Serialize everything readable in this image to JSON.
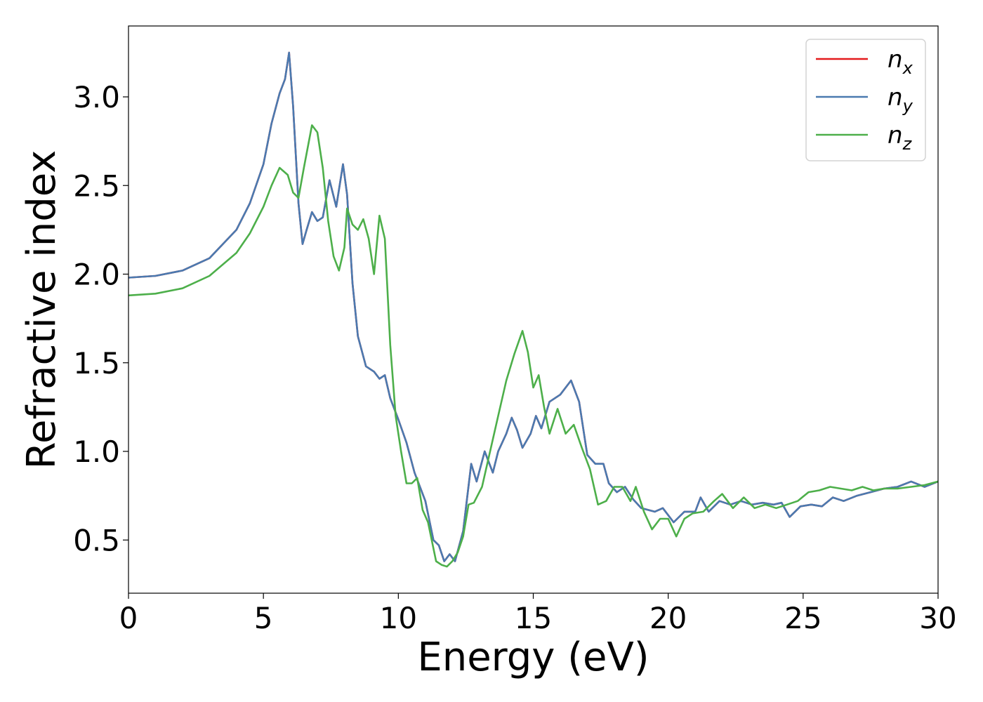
{
  "chart_data": {
    "type": "line",
    "xlabel": "Energy (eV)",
    "ylabel": "Refractive index",
    "xlim": [
      0,
      30
    ],
    "ylim": [
      0.2,
      3.4
    ],
    "xticks": [
      0,
      5,
      10,
      15,
      20,
      25,
      30
    ],
    "yticks": [
      0.5,
      1.0,
      1.5,
      2.0,
      2.5,
      3.0
    ],
    "xtick_labels": [
      "0",
      "5",
      "10",
      "15",
      "20",
      "25",
      "30"
    ],
    "ytick_labels": [
      "0.5",
      "1.0",
      "1.5",
      "2.0",
      "2.5",
      "3.0"
    ],
    "grid": false,
    "legend_position": "top-right",
    "series": [
      {
        "name_base": "n",
        "name_sub": "x",
        "color": "#e41a1c",
        "points": [
          [
            0,
            1.98
          ],
          [
            1,
            1.99
          ],
          [
            2,
            2.02
          ],
          [
            3,
            2.09
          ],
          [
            4,
            2.25
          ],
          [
            4.5,
            2.4
          ],
          [
            5,
            2.62
          ],
          [
            5.3,
            2.85
          ],
          [
            5.6,
            3.02
          ],
          [
            5.8,
            3.1
          ],
          [
            5.95,
            3.25
          ],
          [
            6.1,
            2.95
          ],
          [
            6.3,
            2.4
          ],
          [
            6.45,
            2.17
          ],
          [
            6.6,
            2.25
          ],
          [
            6.8,
            2.35
          ],
          [
            7.0,
            2.3
          ],
          [
            7.2,
            2.32
          ],
          [
            7.45,
            2.53
          ],
          [
            7.7,
            2.38
          ],
          [
            7.95,
            2.62
          ],
          [
            8.1,
            2.45
          ],
          [
            8.3,
            1.95
          ],
          [
            8.5,
            1.65
          ],
          [
            8.8,
            1.48
          ],
          [
            9.1,
            1.45
          ],
          [
            9.3,
            1.41
          ],
          [
            9.5,
            1.43
          ],
          [
            9.7,
            1.3
          ],
          [
            10.0,
            1.18
          ],
          [
            10.3,
            1.05
          ],
          [
            10.6,
            0.88
          ],
          [
            10.8,
            0.8
          ],
          [
            11.0,
            0.72
          ],
          [
            11.3,
            0.5
          ],
          [
            11.5,
            0.47
          ],
          [
            11.7,
            0.38
          ],
          [
            11.9,
            0.42
          ],
          [
            12.1,
            0.38
          ],
          [
            12.4,
            0.55
          ],
          [
            12.7,
            0.93
          ],
          [
            12.9,
            0.83
          ],
          [
            13.2,
            1.0
          ],
          [
            13.5,
            0.88
          ],
          [
            13.7,
            1.0
          ],
          [
            14.0,
            1.1
          ],
          [
            14.2,
            1.19
          ],
          [
            14.4,
            1.12
          ],
          [
            14.6,
            1.02
          ],
          [
            14.9,
            1.1
          ],
          [
            15.1,
            1.2
          ],
          [
            15.3,
            1.13
          ],
          [
            15.6,
            1.28
          ],
          [
            16.0,
            1.32
          ],
          [
            16.4,
            1.4
          ],
          [
            16.7,
            1.28
          ],
          [
            17.0,
            0.98
          ],
          [
            17.3,
            0.93
          ],
          [
            17.6,
            0.93
          ],
          [
            17.8,
            0.82
          ],
          [
            18.1,
            0.77
          ],
          [
            18.4,
            0.8
          ],
          [
            18.7,
            0.73
          ],
          [
            19.0,
            0.68
          ],
          [
            19.5,
            0.66
          ],
          [
            19.8,
            0.68
          ],
          [
            20.2,
            0.6
          ],
          [
            20.6,
            0.66
          ],
          [
            21.0,
            0.66
          ],
          [
            21.2,
            0.74
          ],
          [
            21.5,
            0.66
          ],
          [
            21.9,
            0.72
          ],
          [
            22.3,
            0.7
          ],
          [
            22.7,
            0.72
          ],
          [
            23.1,
            0.7
          ],
          [
            23.5,
            0.71
          ],
          [
            23.9,
            0.7
          ],
          [
            24.2,
            0.71
          ],
          [
            24.5,
            0.63
          ],
          [
            24.9,
            0.69
          ],
          [
            25.3,
            0.7
          ],
          [
            25.7,
            0.69
          ],
          [
            26.1,
            0.74
          ],
          [
            26.5,
            0.72
          ],
          [
            27.0,
            0.75
          ],
          [
            27.5,
            0.77
          ],
          [
            28.0,
            0.79
          ],
          [
            28.5,
            0.8
          ],
          [
            29.0,
            0.83
          ],
          [
            29.5,
            0.8
          ],
          [
            30,
            0.83
          ]
        ]
      },
      {
        "name_base": "n",
        "name_sub": "y",
        "color": "#4a7ab0",
        "points": [
          [
            0,
            1.98
          ],
          [
            1,
            1.99
          ],
          [
            2,
            2.02
          ],
          [
            3,
            2.09
          ],
          [
            4,
            2.25
          ],
          [
            4.5,
            2.4
          ],
          [
            5,
            2.62
          ],
          [
            5.3,
            2.85
          ],
          [
            5.6,
            3.02
          ],
          [
            5.8,
            3.1
          ],
          [
            5.95,
            3.25
          ],
          [
            6.1,
            2.95
          ],
          [
            6.3,
            2.4
          ],
          [
            6.45,
            2.17
          ],
          [
            6.6,
            2.25
          ],
          [
            6.8,
            2.35
          ],
          [
            7.0,
            2.3
          ],
          [
            7.2,
            2.32
          ],
          [
            7.45,
            2.53
          ],
          [
            7.7,
            2.38
          ],
          [
            7.95,
            2.62
          ],
          [
            8.1,
            2.45
          ],
          [
            8.3,
            1.95
          ],
          [
            8.5,
            1.65
          ],
          [
            8.8,
            1.48
          ],
          [
            9.1,
            1.45
          ],
          [
            9.3,
            1.41
          ],
          [
            9.5,
            1.43
          ],
          [
            9.7,
            1.3
          ],
          [
            10.0,
            1.18
          ],
          [
            10.3,
            1.05
          ],
          [
            10.6,
            0.88
          ],
          [
            10.8,
            0.8
          ],
          [
            11.0,
            0.72
          ],
          [
            11.3,
            0.5
          ],
          [
            11.5,
            0.47
          ],
          [
            11.7,
            0.38
          ],
          [
            11.9,
            0.42
          ],
          [
            12.1,
            0.38
          ],
          [
            12.4,
            0.55
          ],
          [
            12.7,
            0.93
          ],
          [
            12.9,
            0.83
          ],
          [
            13.2,
            1.0
          ],
          [
            13.5,
            0.88
          ],
          [
            13.7,
            1.0
          ],
          [
            14.0,
            1.1
          ],
          [
            14.2,
            1.19
          ],
          [
            14.4,
            1.12
          ],
          [
            14.6,
            1.02
          ],
          [
            14.9,
            1.1
          ],
          [
            15.1,
            1.2
          ],
          [
            15.3,
            1.13
          ],
          [
            15.6,
            1.28
          ],
          [
            16.0,
            1.32
          ],
          [
            16.4,
            1.4
          ],
          [
            16.7,
            1.28
          ],
          [
            17.0,
            0.98
          ],
          [
            17.3,
            0.93
          ],
          [
            17.6,
            0.93
          ],
          [
            17.8,
            0.82
          ],
          [
            18.1,
            0.77
          ],
          [
            18.4,
            0.8
          ],
          [
            18.7,
            0.73
          ],
          [
            19.0,
            0.68
          ],
          [
            19.5,
            0.66
          ],
          [
            19.8,
            0.68
          ],
          [
            20.2,
            0.6
          ],
          [
            20.6,
            0.66
          ],
          [
            21.0,
            0.66
          ],
          [
            21.2,
            0.74
          ],
          [
            21.5,
            0.66
          ],
          [
            21.9,
            0.72
          ],
          [
            22.3,
            0.7
          ],
          [
            22.7,
            0.72
          ],
          [
            23.1,
            0.7
          ],
          [
            23.5,
            0.71
          ],
          [
            23.9,
            0.7
          ],
          [
            24.2,
            0.71
          ],
          [
            24.5,
            0.63
          ],
          [
            24.9,
            0.69
          ],
          [
            25.3,
            0.7
          ],
          [
            25.7,
            0.69
          ],
          [
            26.1,
            0.74
          ],
          [
            26.5,
            0.72
          ],
          [
            27.0,
            0.75
          ],
          [
            27.5,
            0.77
          ],
          [
            28.0,
            0.79
          ],
          [
            28.5,
            0.8
          ],
          [
            29.0,
            0.83
          ],
          [
            29.5,
            0.8
          ],
          [
            30,
            0.83
          ]
        ]
      },
      {
        "name_base": "n",
        "name_sub": "z",
        "color": "#4daf4a",
        "points": [
          [
            0,
            1.88
          ],
          [
            1,
            1.89
          ],
          [
            2,
            1.92
          ],
          [
            3,
            1.99
          ],
          [
            4,
            2.12
          ],
          [
            4.5,
            2.23
          ],
          [
            5,
            2.38
          ],
          [
            5.3,
            2.5
          ],
          [
            5.6,
            2.6
          ],
          [
            5.9,
            2.56
          ],
          [
            6.1,
            2.46
          ],
          [
            6.3,
            2.43
          ],
          [
            6.5,
            2.6
          ],
          [
            6.8,
            2.84
          ],
          [
            7.0,
            2.8
          ],
          [
            7.2,
            2.6
          ],
          [
            7.4,
            2.3
          ],
          [
            7.6,
            2.1
          ],
          [
            7.8,
            2.02
          ],
          [
            8.0,
            2.15
          ],
          [
            8.1,
            2.37
          ],
          [
            8.3,
            2.28
          ],
          [
            8.5,
            2.25
          ],
          [
            8.7,
            2.31
          ],
          [
            8.9,
            2.2
          ],
          [
            9.1,
            2.0
          ],
          [
            9.3,
            2.33
          ],
          [
            9.5,
            2.2
          ],
          [
            9.7,
            1.6
          ],
          [
            9.9,
            1.2
          ],
          [
            10.1,
            1.0
          ],
          [
            10.3,
            0.82
          ],
          [
            10.5,
            0.82
          ],
          [
            10.7,
            0.85
          ],
          [
            10.9,
            0.67
          ],
          [
            11.1,
            0.6
          ],
          [
            11.4,
            0.38
          ],
          [
            11.6,
            0.36
          ],
          [
            11.8,
            0.35
          ],
          [
            12.0,
            0.38
          ],
          [
            12.2,
            0.43
          ],
          [
            12.4,
            0.52
          ],
          [
            12.6,
            0.7
          ],
          [
            12.8,
            0.71
          ],
          [
            13.1,
            0.8
          ],
          [
            13.4,
            1.0
          ],
          [
            13.7,
            1.2
          ],
          [
            14.0,
            1.4
          ],
          [
            14.3,
            1.55
          ],
          [
            14.6,
            1.68
          ],
          [
            14.8,
            1.56
          ],
          [
            15.0,
            1.36
          ],
          [
            15.2,
            1.43
          ],
          [
            15.4,
            1.25
          ],
          [
            15.6,
            1.1
          ],
          [
            15.9,
            1.24
          ],
          [
            16.2,
            1.1
          ],
          [
            16.5,
            1.15
          ],
          [
            16.8,
            1.02
          ],
          [
            17.1,
            0.9
          ],
          [
            17.4,
            0.7
          ],
          [
            17.7,
            0.72
          ],
          [
            18.0,
            0.8
          ],
          [
            18.3,
            0.8
          ],
          [
            18.6,
            0.72
          ],
          [
            18.8,
            0.8
          ],
          [
            19.1,
            0.66
          ],
          [
            19.4,
            0.56
          ],
          [
            19.7,
            0.62
          ],
          [
            20.0,
            0.62
          ],
          [
            20.3,
            0.52
          ],
          [
            20.6,
            0.62
          ],
          [
            20.9,
            0.65
          ],
          [
            21.3,
            0.66
          ],
          [
            21.7,
            0.72
          ],
          [
            22.0,
            0.76
          ],
          [
            22.4,
            0.68
          ],
          [
            22.8,
            0.74
          ],
          [
            23.2,
            0.68
          ],
          [
            23.6,
            0.7
          ],
          [
            24.0,
            0.68
          ],
          [
            24.4,
            0.7
          ],
          [
            24.8,
            0.72
          ],
          [
            25.2,
            0.77
          ],
          [
            25.6,
            0.78
          ],
          [
            26.0,
            0.8
          ],
          [
            26.4,
            0.79
          ],
          [
            26.8,
            0.78
          ],
          [
            27.2,
            0.8
          ],
          [
            27.6,
            0.78
          ],
          [
            28.0,
            0.79
          ],
          [
            28.5,
            0.79
          ],
          [
            29.0,
            0.8
          ],
          [
            29.5,
            0.81
          ],
          [
            30,
            0.83
          ]
        ]
      }
    ]
  }
}
